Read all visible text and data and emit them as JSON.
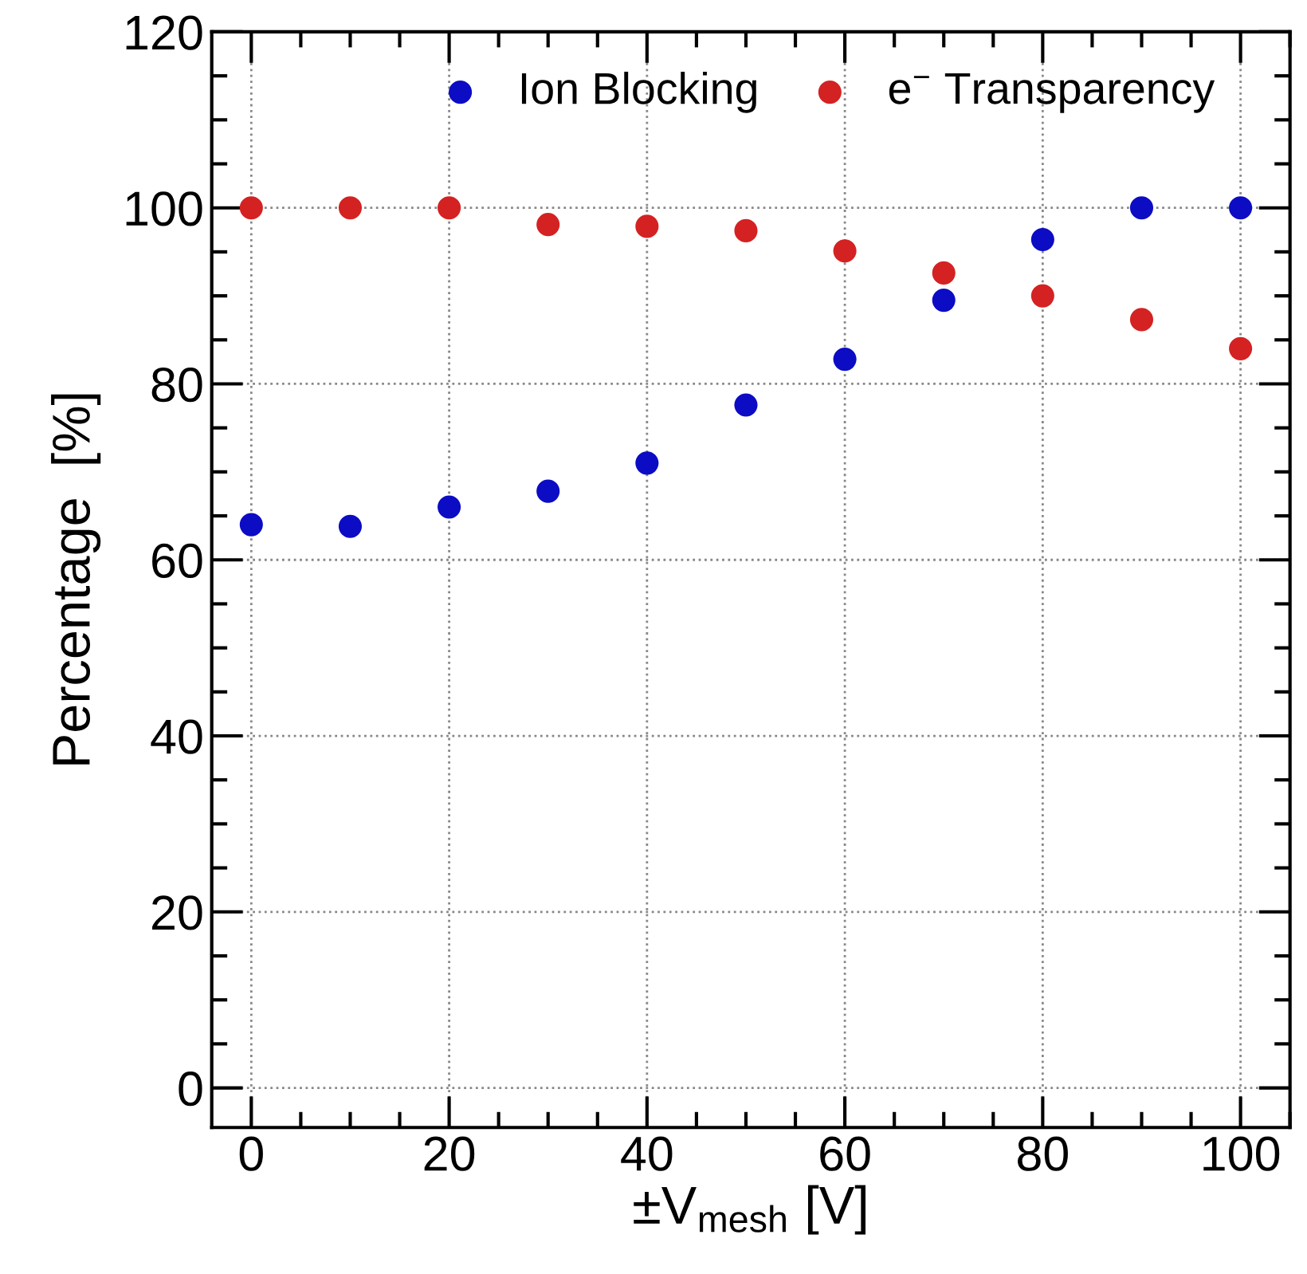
{
  "chart_data": {
    "type": "scatter",
    "xlabel": "±V$_{mesh}$ [V]",
    "ylabel": "Percentage  [%]",
    "x": [
      0,
      10,
      20,
      30,
      40,
      50,
      60,
      70,
      80,
      90,
      100
    ],
    "series": [
      {
        "name": "Ion Blocking",
        "color": "#0c0cc4",
        "values": [
          64.0,
          63.8,
          66.0,
          67.8,
          71.0,
          77.6,
          82.8,
          89.5,
          96.4,
          100,
          100
        ]
      },
      {
        "name": "e$^{−}$ Transparency",
        "color": "#d42222",
        "values": [
          100,
          100,
          100,
          98.1,
          97.9,
          97.4,
          95.1,
          92.6,
          90.0,
          87.3,
          84.0
        ]
      }
    ],
    "xlim": [
      -4,
      105
    ],
    "ylim": [
      -4.5,
      120
    ],
    "xticks": [
      0,
      20,
      40,
      60,
      80,
      100
    ],
    "yticks": [
      0,
      20,
      40,
      60,
      80,
      100,
      120
    ],
    "grid": true,
    "legend": "top",
    "marker": "circle"
  }
}
